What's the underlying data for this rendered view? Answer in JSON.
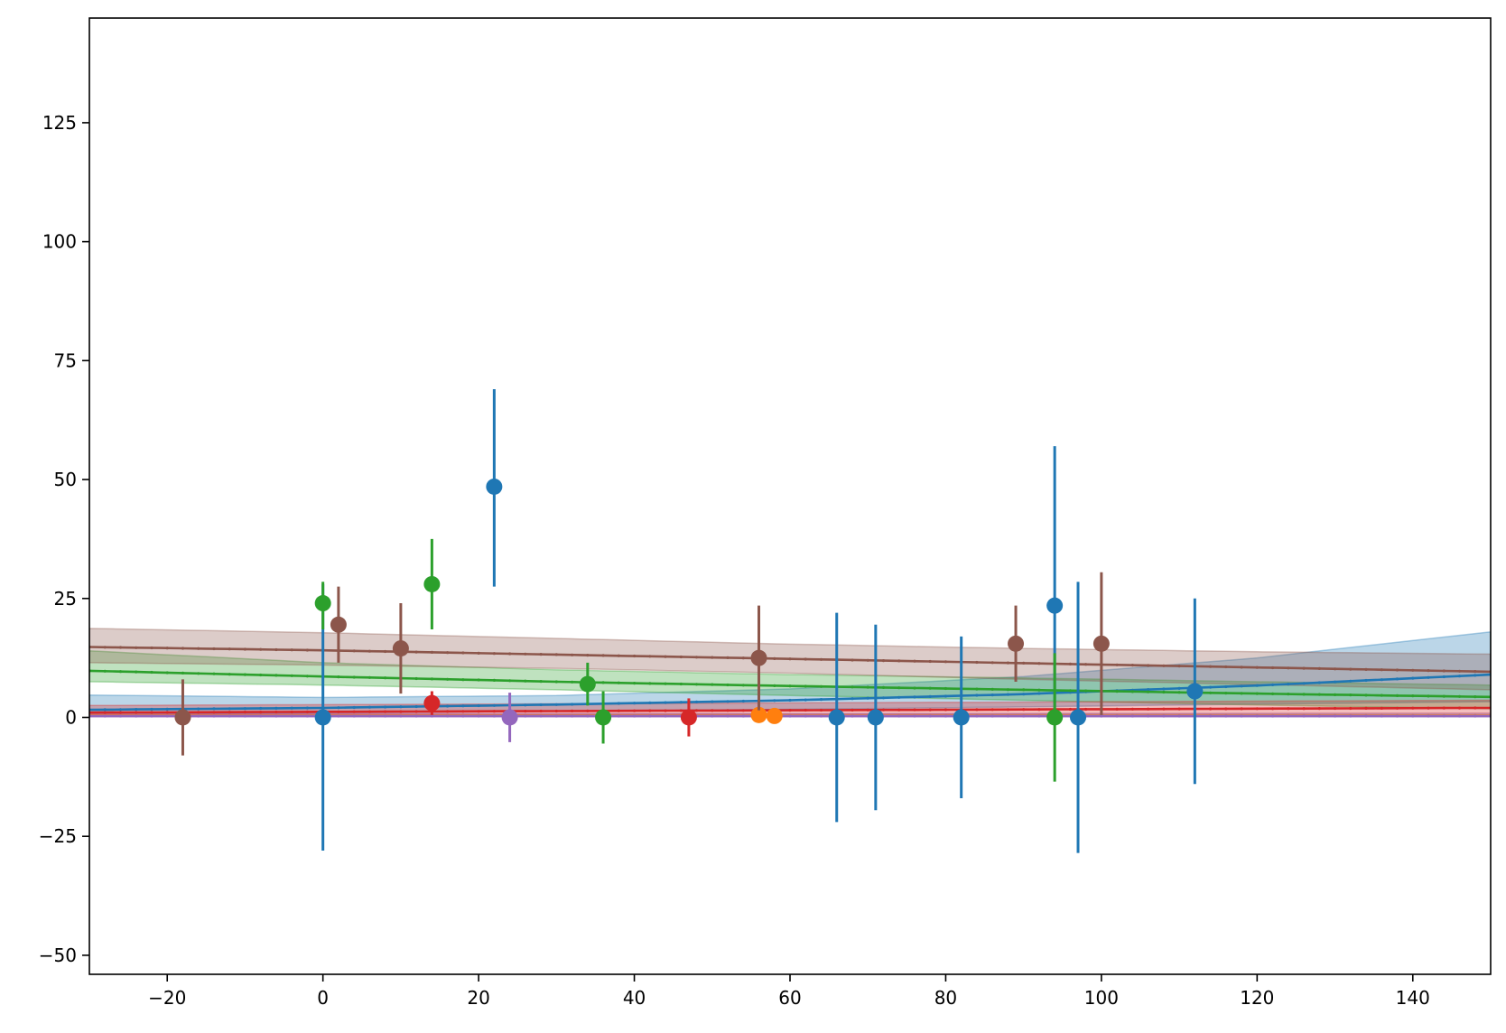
{
  "chart_data": {
    "type": "scatter",
    "title": "",
    "xlabel": "",
    "ylabel": "",
    "xlim": [
      -30,
      150
    ],
    "ylim": [
      -54,
      147
    ],
    "grid": false,
    "legend": "none",
    "x_ticks": [
      -20,
      0,
      20,
      40,
      60,
      80,
      100,
      120,
      140
    ],
    "x_tick_labels": [
      "−20",
      "0",
      "20",
      "40",
      "60",
      "80",
      "100",
      "120",
      "140"
    ],
    "y_ticks": [
      -50,
      -25,
      0,
      25,
      50,
      75,
      100,
      125
    ],
    "y_tick_labels": [
      "−50",
      "−25",
      "0",
      "25",
      "50",
      "75",
      "100",
      "125"
    ],
    "series": [
      {
        "color": "#1f77b4",
        "points": [
          {
            "x": 0,
            "y": 0,
            "lo": -28,
            "hi": 28
          },
          {
            "x": 22,
            "y": 48.5,
            "lo": 27.5,
            "hi": 69
          },
          {
            "x": 66,
            "y": 0,
            "lo": -22,
            "hi": 22
          },
          {
            "x": 71,
            "y": 0,
            "lo": -19.5,
            "hi": 19.5
          },
          {
            "x": 82,
            "y": 0,
            "lo": -17,
            "hi": 17
          },
          {
            "x": 94,
            "y": 23.5,
            "lo": 0,
            "hi": 57
          },
          {
            "x": 97,
            "y": 0,
            "lo": -28.5,
            "hi": 28.5
          },
          {
            "x": 112,
            "y": 5.5,
            "lo": -14,
            "hi": 25
          }
        ],
        "fit": {
          "x": [
            -30,
            0,
            30,
            60,
            90,
            120,
            150
          ],
          "y": [
            1.6,
            2.0,
            2.7,
            3.6,
            4.9,
            6.7,
            9.0
          ]
        },
        "band": {
          "x": [
            -30,
            0,
            30,
            60,
            90,
            120,
            150
          ],
          "lo": [
            0.5,
            0.9,
            1.3,
            1.7,
            2.2,
            2.8,
            3.3
          ],
          "hi": [
            4.7,
            4.2,
            4.6,
            6.0,
            8.6,
            12.5,
            18.0
          ]
        }
      },
      {
        "color": "#ff7f0e",
        "points": [
          {
            "x": 56,
            "y": 0.5,
            "lo": 0.1,
            "hi": 0.9
          },
          {
            "x": 58,
            "y": 0.3,
            "lo": 0.0,
            "hi": 0.6
          }
        ],
        "fit": {
          "x": [
            -30,
            150
          ],
          "y": [
            0.4,
            0.4
          ]
        },
        "band": {
          "x": [
            -30,
            150
          ],
          "lo": [
            0.2,
            0.2
          ],
          "hi": [
            0.7,
            0.7
          ]
        }
      },
      {
        "color": "#2ca02c",
        "points": [
          {
            "x": 0,
            "y": 24,
            "lo": 18.5,
            "hi": 28.5
          },
          {
            "x": 14,
            "y": 28,
            "lo": 18.5,
            "hi": 37.5
          },
          {
            "x": 34,
            "y": 7,
            "lo": 2.5,
            "hi": 11.5
          },
          {
            "x": 36,
            "y": 0,
            "lo": -5.5,
            "hi": 5.5
          },
          {
            "x": 94,
            "y": 0,
            "lo": -13.5,
            "hi": 13.5
          }
        ],
        "fit": {
          "x": [
            -30,
            0,
            30,
            60,
            90,
            120,
            150
          ],
          "y": [
            9.8,
            8.6,
            7.5,
            6.6,
            5.8,
            5.0,
            4.3
          ]
        },
        "band": {
          "x": [
            -30,
            0,
            30,
            60,
            90,
            120,
            150
          ],
          "lo": [
            7.5,
            6.8,
            5.8,
            4.6,
            3.6,
            2.6,
            1.8
          ],
          "hi": [
            14.0,
            11.5,
            10.0,
            9.0,
            8.3,
            7.5,
            6.8
          ]
        }
      },
      {
        "color": "#d62728",
        "points": [
          {
            "x": 14,
            "y": 3,
            "lo": 0.5,
            "hi": 5.5
          },
          {
            "x": 47,
            "y": 0,
            "lo": -4,
            "hi": 4
          }
        ],
        "fit": {
          "x": [
            -30,
            150
          ],
          "y": [
            1.0,
            2.0
          ]
        },
        "band": {
          "x": [
            -30,
            150
          ],
          "lo": [
            0.5,
            0.9
          ],
          "hi": [
            2.5,
            3.6
          ]
        }
      },
      {
        "color": "#9467bd",
        "points": [
          {
            "x": 24,
            "y": 0,
            "lo": -5.2,
            "hi": 5.2
          }
        ],
        "fit": {
          "x": [
            -30,
            150
          ],
          "y": [
            0.3,
            0.3
          ]
        },
        "band": {
          "x": [
            -30,
            150
          ],
          "lo": [
            0.1,
            0.1
          ],
          "hi": [
            0.8,
            0.8
          ]
        }
      },
      {
        "color": "#8c564b",
        "points": [
          {
            "x": -18,
            "y": 0,
            "lo": -8,
            "hi": 8
          },
          {
            "x": 2,
            "y": 19.5,
            "lo": 11.5,
            "hi": 27.5
          },
          {
            "x": 10,
            "y": 14.5,
            "lo": 5,
            "hi": 24
          },
          {
            "x": 56,
            "y": 12.5,
            "lo": 1.5,
            "hi": 23.5
          },
          {
            "x": 89,
            "y": 15.5,
            "lo": 7.5,
            "hi": 23.5
          },
          {
            "x": 100,
            "y": 15.5,
            "lo": 0.5,
            "hi": 30.5
          }
        ],
        "fit": {
          "x": [
            -30,
            0,
            30,
            60,
            90,
            120,
            150
          ],
          "y": [
            14.8,
            14.1,
            13.2,
            12.3,
            11.4,
            10.5,
            9.6
          ]
        },
        "band": {
          "x": [
            -30,
            0,
            30,
            60,
            90,
            120,
            150
          ],
          "lo": [
            11.5,
            11.0,
            10.3,
            9.3,
            8.0,
            6.9,
            5.8
          ],
          "hi": [
            18.7,
            17.8,
            16.6,
            15.4,
            14.5,
            13.8,
            13.3
          ]
        }
      }
    ]
  }
}
